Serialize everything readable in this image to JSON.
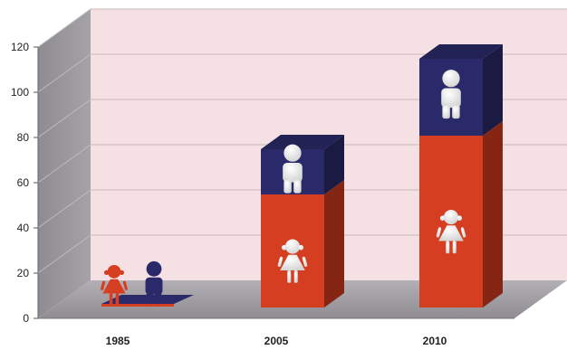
{
  "chart_data": {
    "type": "bar",
    "stacked": true,
    "three_d": true,
    "categories": [
      "1985",
      "2005",
      "2010"
    ],
    "series": [
      {
        "icon": "girl-icon",
        "color": "#d63e22",
        "values": [
          2,
          50,
          76
        ]
      },
      {
        "icon": "boy-icon",
        "color": "#2a2a6a",
        "values": [
          2,
          20,
          34
        ]
      }
    ],
    "y_ticks": [
      "0",
      "20",
      "40",
      "60",
      "80",
      "100",
      "120"
    ],
    "ylim": [
      0,
      120
    ],
    "grid": true,
    "wall_color": "#f5e1e4",
    "side_wall_color": "#9a989c",
    "floor_color": "#a9a6ab",
    "legend": "none"
  }
}
